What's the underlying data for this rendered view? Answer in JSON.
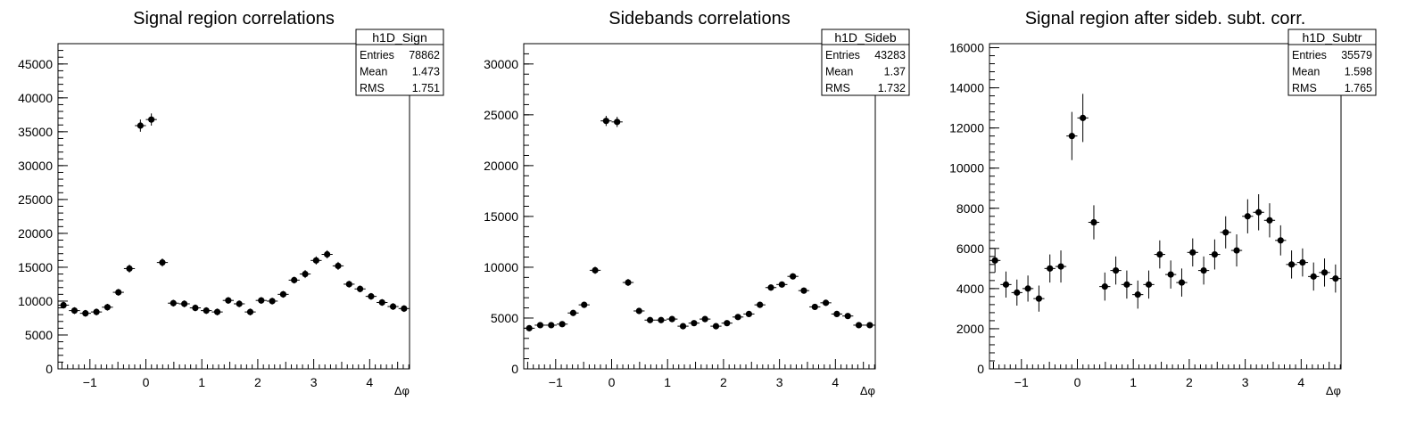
{
  "panels": [
    {
      "title": "Signal region correlations",
      "stats": {
        "name": "h1D_Sign",
        "rows": [
          {
            "label": "Entries",
            "value": "78862"
          },
          {
            "label": "Mean",
            "value": "1.473"
          },
          {
            "label": "RMS",
            "value": "1.751"
          }
        ]
      }
    },
    {
      "title": "Sidebands correlations",
      "stats": {
        "name": "h1D_Sideb",
        "rows": [
          {
            "label": "Entries",
            "value": "43283"
          },
          {
            "label": "Mean",
            "value": "1.37"
          },
          {
            "label": "RMS",
            "value": "1.732"
          }
        ]
      }
    },
    {
      "title": "Signal region after sideb. subt. corr.",
      "stats": {
        "name": "h1D_Subtr",
        "rows": [
          {
            "label": "Entries",
            "value": "35579"
          },
          {
            "label": "Mean",
            "value": "1.598"
          },
          {
            "label": "RMS",
            "value": "1.765"
          }
        ]
      }
    }
  ],
  "chart_data": [
    {
      "type": "scatter",
      "title": "Signal region correlations",
      "xlabel": "Δφ",
      "ylabel": "",
      "xlim": [
        -1.5708,
        4.7124
      ],
      "ylim": [
        0,
        48000
      ],
      "xticks": [
        -1,
        0,
        1,
        2,
        3,
        4
      ],
      "yticks": [
        0,
        5000,
        10000,
        15000,
        20000,
        25000,
        30000,
        35000,
        40000,
        45000
      ],
      "bin_width": 0.19635,
      "values": [
        9400,
        8600,
        8200,
        8400,
        9100,
        11300,
        14800,
        35900,
        36800,
        15700,
        9700,
        9600,
        9000,
        8600,
        8400,
        10100,
        9600,
        8400,
        10100,
        10000,
        11000,
        13100,
        14000,
        16000,
        16900,
        15200,
        12500,
        11800,
        10700,
        9800,
        9200,
        8900
      ],
      "errors": [
        500,
        500,
        500,
        500,
        500,
        500,
        600,
        900,
        900,
        600,
        500,
        500,
        500,
        500,
        500,
        500,
        500,
        500,
        500,
        500,
        500,
        500,
        600,
        600,
        600,
        600,
        500,
        500,
        500,
        500,
        500,
        500
      ]
    },
    {
      "type": "scatter",
      "title": "Sidebands correlations",
      "xlabel": "Δφ",
      "ylabel": "",
      "xlim": [
        -1.5708,
        4.7124
      ],
      "ylim": [
        0,
        32000
      ],
      "xticks": [
        -1,
        0,
        1,
        2,
        3,
        4
      ],
      "yticks": [
        0,
        5000,
        10000,
        15000,
        20000,
        25000,
        30000
      ],
      "bin_width": 0.19635,
      "values": [
        4000,
        4300,
        4300,
        4400,
        5500,
        6300,
        9700,
        24400,
        24300,
        8500,
        5700,
        4800,
        4800,
        4900,
        4200,
        4500,
        4900,
        4200,
        4500,
        5100,
        5400,
        6300,
        8000,
        8300,
        9100,
        7700,
        6100,
        6500,
        5400,
        5200,
        4300,
        4300
      ],
      "errors": [
        250,
        250,
        250,
        250,
        250,
        250,
        350,
        500,
        500,
        350,
        250,
        250,
        250,
        250,
        250,
        250,
        250,
        250,
        250,
        250,
        250,
        250,
        300,
        300,
        300,
        300,
        250,
        250,
        250,
        250,
        250,
        250
      ]
    },
    {
      "type": "scatter",
      "title": "Signal region after sideb. subt. corr.",
      "xlabel": "Δφ",
      "ylabel": "",
      "xlim": [
        -1.5708,
        4.7124
      ],
      "ylim": [
        0,
        16200
      ],
      "xticks": [
        -1,
        0,
        1,
        2,
        3,
        4
      ],
      "yticks": [
        0,
        2000,
        4000,
        6000,
        8000,
        10000,
        12000,
        14000,
        16000
      ],
      "bin_width": 0.19635,
      "values": [
        5400,
        4200,
        3800,
        4000,
        3500,
        5000,
        5100,
        11600,
        12500,
        7300,
        4100,
        4900,
        4200,
        3700,
        4200,
        5700,
        4700,
        4300,
        5800,
        4900,
        5700,
        6800,
        5900,
        7600,
        7800,
        7400,
        6400,
        5200,
        5300,
        4600,
        4800,
        4500
      ],
      "errors": [
        600,
        650,
        650,
        650,
        650,
        700,
        800,
        1200,
        1200,
        850,
        700,
        700,
        700,
        700,
        700,
        700,
        700,
        700,
        700,
        700,
        750,
        800,
        800,
        850,
        900,
        850,
        750,
        700,
        700,
        700,
        700,
        700
      ]
    }
  ]
}
